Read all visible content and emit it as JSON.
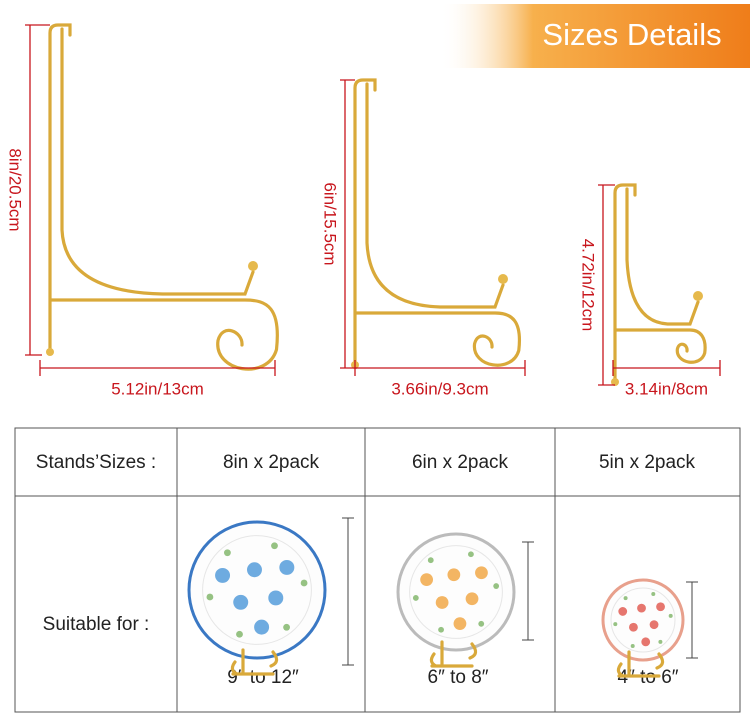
{
  "banner": {
    "title": "Sizes Details"
  },
  "stands": [
    {
      "height": "8in/20.5cm",
      "width": "5.12in/13cm"
    },
    {
      "height": "6in/15.5cm",
      "width": "3.66in/9.3cm"
    },
    {
      "height": "4.72in/12cm",
      "width": "3.14in/8cm"
    }
  ],
  "table": {
    "header": [
      "Stands’Sizes :",
      "8in x 2pack",
      "6in x 2pack",
      "5in x 2pack"
    ],
    "row_label": "Suitable for :",
    "ranges": [
      "9″  to  12″",
      "6″  to  8″",
      "4″  to  6″"
    ]
  }
}
